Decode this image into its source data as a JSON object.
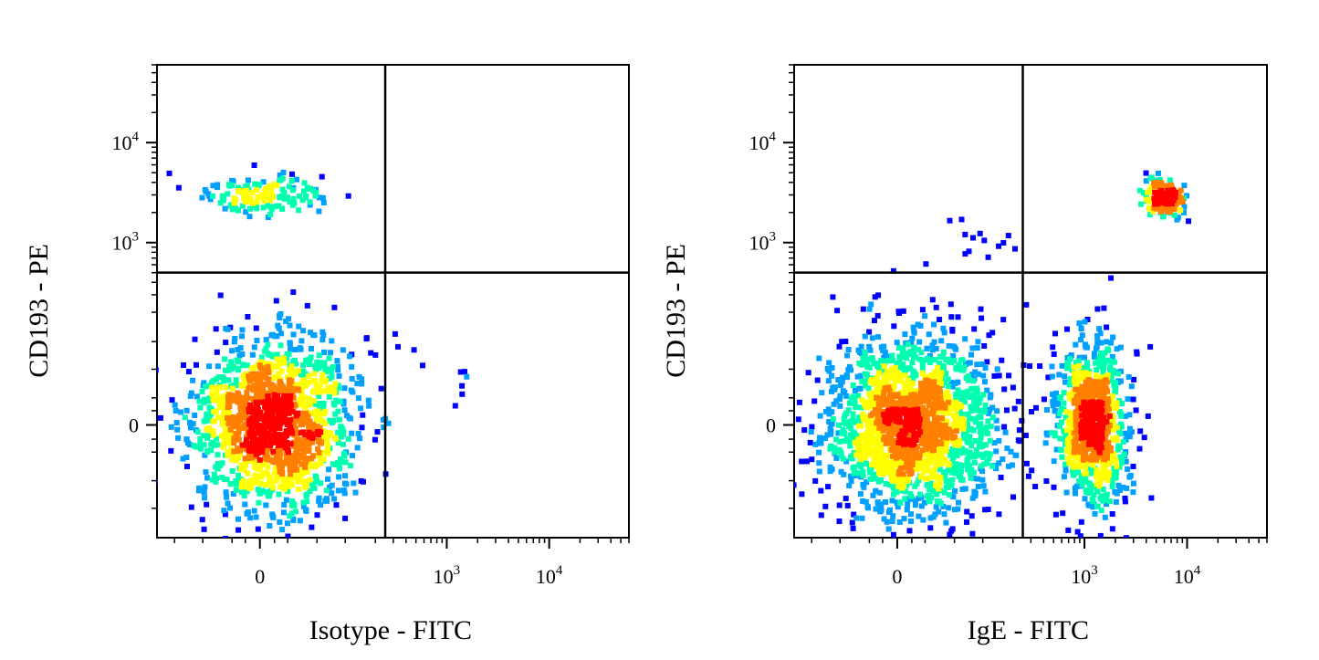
{
  "chart_data": [
    {
      "type": "scatter",
      "subtype": "flow-cytometry-density-dot-plot",
      "title": "",
      "xlabel": "Isotype - FITC",
      "ylabel": "CD193 - PE",
      "x_scale": "biexponential",
      "y_scale": "biexponential",
      "x_ticks": [
        {
          "value": 0,
          "label": "0"
        },
        {
          "value": 1000,
          "label": "10",
          "exp": "3"
        },
        {
          "value": 10000,
          "label": "10",
          "exp": "4"
        }
      ],
      "y_ticks": [
        {
          "value": 0,
          "label": "0"
        },
        {
          "value": 1000,
          "label": "10",
          "exp": "3"
        },
        {
          "value": 10000,
          "label": "10",
          "exp": "4"
        }
      ],
      "xlim": [
        -150,
        60000
      ],
      "ylim": [
        -200,
        60000
      ],
      "quadrant_gate": {
        "x": 250,
        "y": 500
      },
      "grid": false,
      "density_colors": [
        "#0000ff",
        "#00a0ff",
        "#00ffb0",
        "#ffff00",
        "#ff8000",
        "#ff0000"
      ],
      "populations": [
        {
          "name": "",
          "quadrant": "lower-left",
          "center": [
            10,
            0
          ],
          "spread_x": 100,
          "spread_y": 90,
          "count": 1400
        },
        {
          "name": "",
          "quadrant": "upper-left",
          "center": [
            5,
            3000
          ],
          "spread_x": 60,
          "spread_y": 1400,
          "count": 150
        },
        {
          "name": "",
          "quadrant": "lower-right",
          "center": [
            1500,
            30
          ],
          "spread_x": 1200,
          "spread_y": 40,
          "count": 6
        }
      ]
    },
    {
      "type": "scatter",
      "subtype": "flow-cytometry-density-dot-plot",
      "title": "",
      "xlabel": "IgE - FITC",
      "ylabel": "CD193 - PE",
      "x_scale": "biexponential",
      "y_scale": "biexponential",
      "x_ticks": [
        {
          "value": 0,
          "label": "0"
        },
        {
          "value": 1000,
          "label": "10",
          "exp": "3"
        },
        {
          "value": 10000,
          "label": "10",
          "exp": "4"
        }
      ],
      "y_ticks": [
        {
          "value": 0,
          "label": "0"
        },
        {
          "value": 1000,
          "label": "10",
          "exp": "3"
        },
        {
          "value": 10000,
          "label": "10",
          "exp": "4"
        }
      ],
      "xlim": [
        -150,
        60000
      ],
      "ylim": [
        -200,
        60000
      ],
      "quadrant_gate": {
        "x": 250,
        "y": 500
      },
      "grid": false,
      "density_colors": [
        "#0000ff",
        "#00a0ff",
        "#00ffb0",
        "#ffff00",
        "#ff8000",
        "#ff0000"
      ],
      "populations": [
        {
          "name": "",
          "quadrant": "lower-left",
          "center": [
            10,
            0
          ],
          "spread_x": 110,
          "spread_y": 95,
          "count": 1800
        },
        {
          "name": "",
          "quadrant": "lower-right",
          "center": [
            1200,
            0
          ],
          "spread_x": 1300,
          "spread_y": 80,
          "count": 900
        },
        {
          "name": "",
          "quadrant": "upper-right",
          "center": [
            6000,
            2800
          ],
          "spread_x": 3000,
          "spread_y": 1300,
          "count": 180
        },
        {
          "name": "",
          "quadrant": "upper-left",
          "center": [
            80,
            1200
          ],
          "spread_x": 120,
          "spread_y": 1000,
          "count": 14
        }
      ]
    }
  ]
}
